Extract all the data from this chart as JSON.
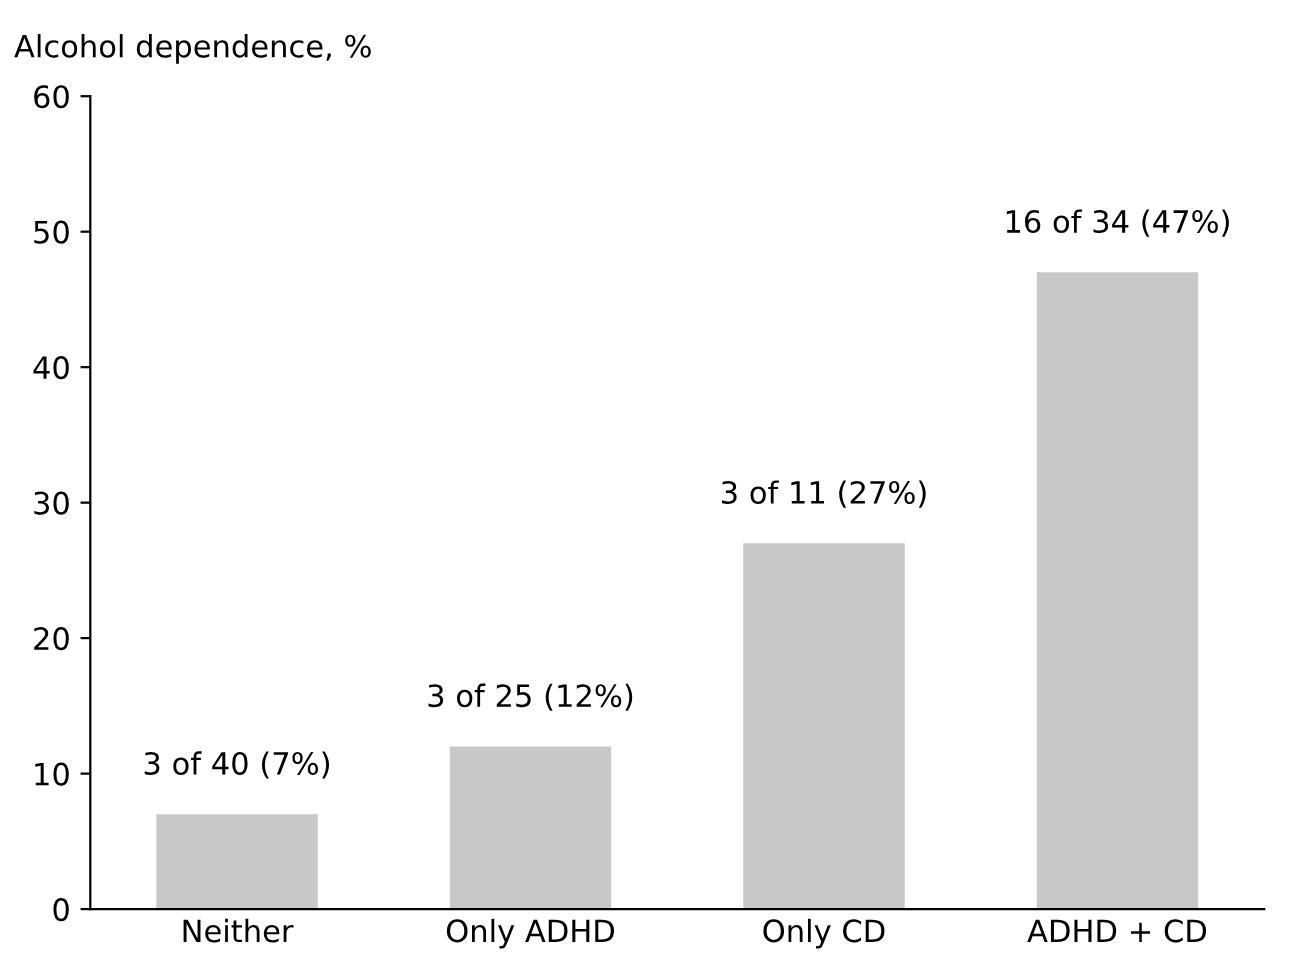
{
  "chart_data": {
    "type": "bar",
    "ylabel": "Alcohol dependence, %",
    "categories": [
      "Neither",
      "Only ADHD",
      "Only CD",
      "ADHD + CD"
    ],
    "values": [
      7,
      12,
      27,
      47
    ],
    "value_labels": [
      "3 of 40 (7%)",
      "3 of 25 (12%)",
      "3 of 11 (27%)",
      "16 of 34 (47%)"
    ],
    "color": "#c8c8ca",
    "ylim": [
      0,
      60
    ],
    "yticks": [
      0,
      10,
      20,
      30,
      40,
      50,
      60
    ],
    "grid": false,
    "legend": false
  }
}
